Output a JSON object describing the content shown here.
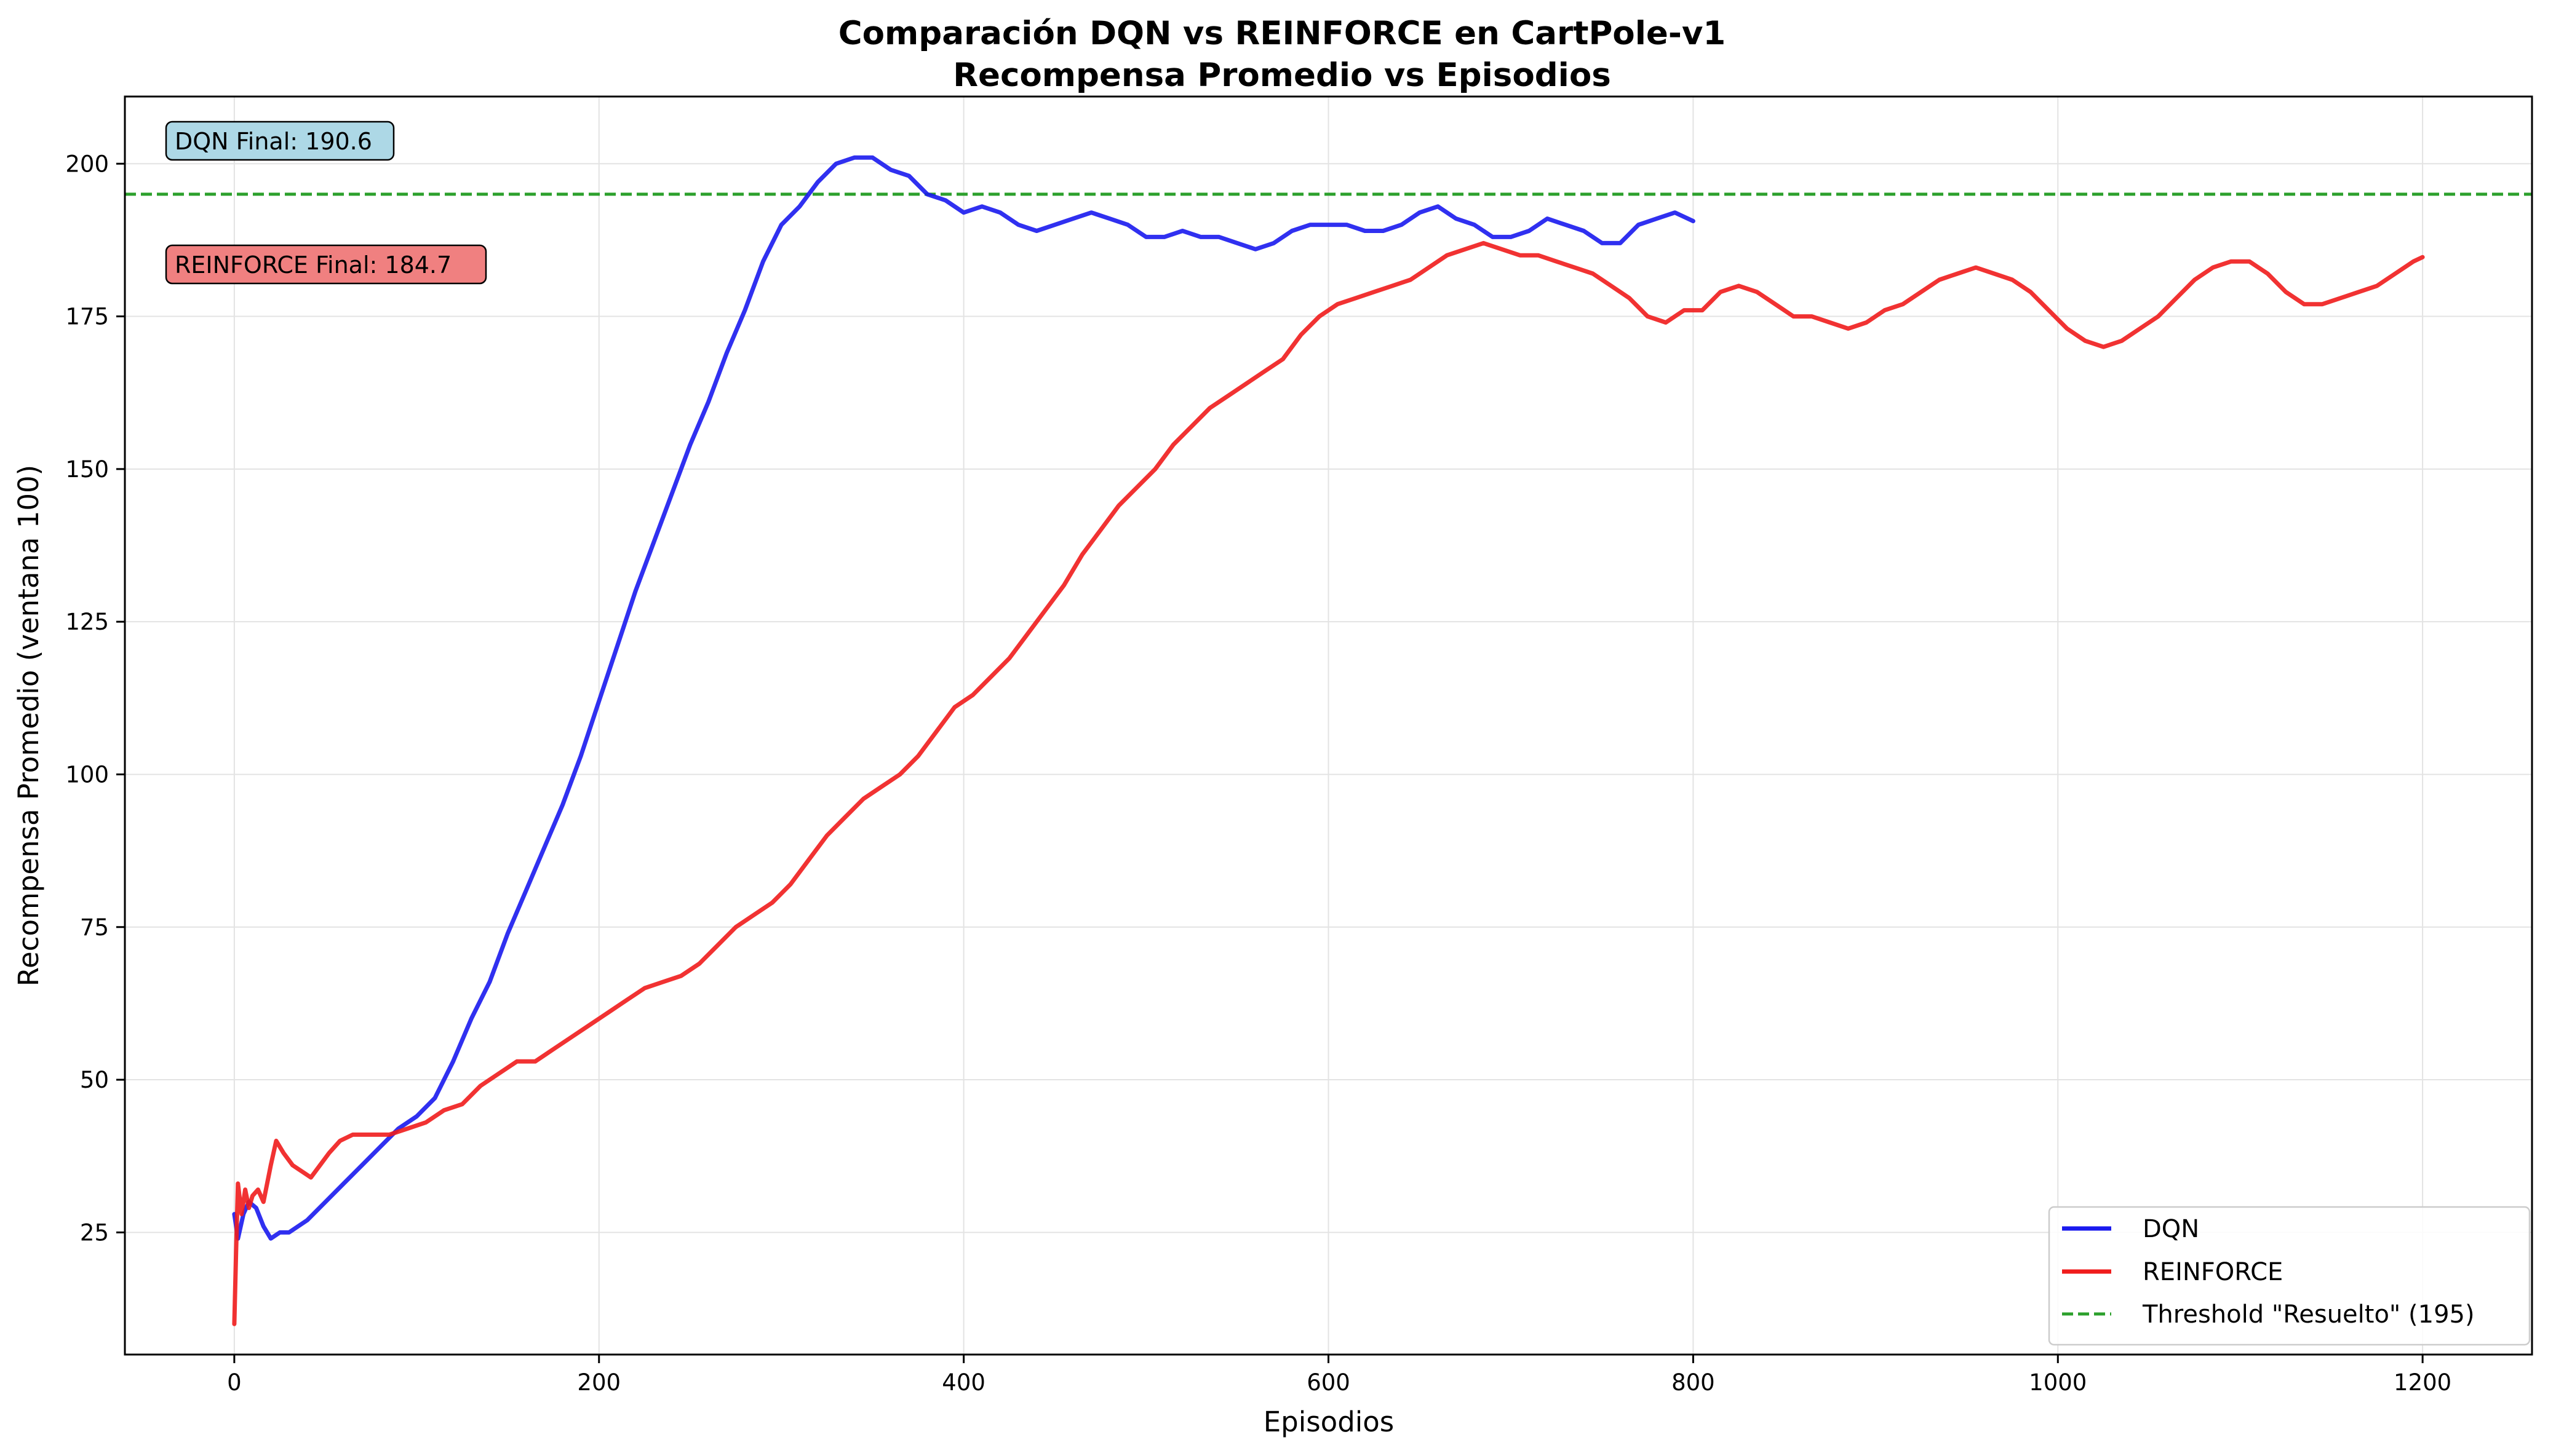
{
  "chart_data": {
    "type": "line",
    "title": "Comparación DQN vs REINFORCE en CartPole-v1",
    "subtitle": "Recompensa Promedio vs Episodios",
    "xlabel": "Episodios",
    "ylabel": "Recompensa Promedio (ventana 100)",
    "xlim": [
      -60,
      1260
    ],
    "ylim": [
      5,
      211
    ],
    "xticks": [
      0,
      200,
      400,
      600,
      800,
      1000,
      1200
    ],
    "yticks": [
      25,
      50,
      75,
      100,
      125,
      150,
      175,
      200
    ],
    "grid": true,
    "legend_position": "lower right",
    "series": [
      {
        "name": "DQN",
        "color": "#1a1aee",
        "points": [
          [
            0,
            28
          ],
          [
            2,
            24
          ],
          [
            5,
            28
          ],
          [
            8,
            30
          ],
          [
            12,
            29
          ],
          [
            16,
            26
          ],
          [
            20,
            24
          ],
          [
            25,
            25
          ],
          [
            30,
            25
          ],
          [
            40,
            27
          ],
          [
            50,
            30
          ],
          [
            60,
            33
          ],
          [
            70,
            36
          ],
          [
            80,
            39
          ],
          [
            90,
            42
          ],
          [
            100,
            44
          ],
          [
            110,
            47
          ],
          [
            120,
            53
          ],
          [
            130,
            60
          ],
          [
            140,
            66
          ],
          [
            150,
            74
          ],
          [
            160,
            81
          ],
          [
            170,
            88
          ],
          [
            180,
            95
          ],
          [
            190,
            103
          ],
          [
            200,
            112
          ],
          [
            210,
            121
          ],
          [
            220,
            130
          ],
          [
            230,
            138
          ],
          [
            240,
            146
          ],
          [
            250,
            154
          ],
          [
            260,
            161
          ],
          [
            270,
            169
          ],
          [
            280,
            176
          ],
          [
            290,
            184
          ],
          [
            300,
            190
          ],
          [
            310,
            193
          ],
          [
            320,
            197
          ],
          [
            330,
            200
          ],
          [
            340,
            201
          ],
          [
            350,
            201
          ],
          [
            360,
            199
          ],
          [
            370,
            198
          ],
          [
            380,
            195
          ],
          [
            390,
            194
          ],
          [
            400,
            192
          ],
          [
            410,
            193
          ],
          [
            420,
            192
          ],
          [
            430,
            190
          ],
          [
            440,
            189
          ],
          [
            450,
            190
          ],
          [
            460,
            191
          ],
          [
            470,
            192
          ],
          [
            480,
            191
          ],
          [
            490,
            190
          ],
          [
            500,
            188
          ],
          [
            510,
            188
          ],
          [
            520,
            189
          ],
          [
            530,
            188
          ],
          [
            540,
            188
          ],
          [
            550,
            187
          ],
          [
            560,
            186
          ],
          [
            570,
            187
          ],
          [
            580,
            189
          ],
          [
            590,
            190
          ],
          [
            600,
            190
          ],
          [
            610,
            190
          ],
          [
            620,
            189
          ],
          [
            630,
            189
          ],
          [
            640,
            190
          ],
          [
            650,
            192
          ],
          [
            660,
            193
          ],
          [
            670,
            191
          ],
          [
            680,
            190
          ],
          [
            690,
            188
          ],
          [
            700,
            188
          ],
          [
            710,
            189
          ],
          [
            720,
            191
          ],
          [
            730,
            190
          ],
          [
            740,
            189
          ],
          [
            750,
            187
          ],
          [
            760,
            187
          ],
          [
            770,
            190
          ],
          [
            780,
            191
          ],
          [
            790,
            192
          ],
          [
            800,
            190.6
          ]
        ]
      },
      {
        "name": "REINFORCE",
        "color": "#f01c1c",
        "points": [
          [
            0,
            10
          ],
          [
            1,
            22
          ],
          [
            2,
            33
          ],
          [
            4,
            28
          ],
          [
            6,
            32
          ],
          [
            8,
            29
          ],
          [
            10,
            31
          ],
          [
            13,
            32
          ],
          [
            16,
            30
          ],
          [
            20,
            36
          ],
          [
            23,
            40
          ],
          [
            27,
            38
          ],
          [
            32,
            36
          ],
          [
            37,
            35
          ],
          [
            42,
            34
          ],
          [
            47,
            36
          ],
          [
            52,
            38
          ],
          [
            58,
            40
          ],
          [
            65,
            41
          ],
          [
            75,
            41
          ],
          [
            85,
            41
          ],
          [
            95,
            42
          ],
          [
            105,
            43
          ],
          [
            115,
            45
          ],
          [
            125,
            46
          ],
          [
            135,
            49
          ],
          [
            145,
            51
          ],
          [
            155,
            53
          ],
          [
            165,
            53
          ],
          [
            175,
            55
          ],
          [
            185,
            57
          ],
          [
            195,
            59
          ],
          [
            205,
            61
          ],
          [
            215,
            63
          ],
          [
            225,
            65
          ],
          [
            235,
            66
          ],
          [
            245,
            67
          ],
          [
            255,
            69
          ],
          [
            265,
            72
          ],
          [
            275,
            75
          ],
          [
            285,
            77
          ],
          [
            295,
            79
          ],
          [
            305,
            82
          ],
          [
            315,
            86
          ],
          [
            325,
            90
          ],
          [
            335,
            93
          ],
          [
            345,
            96
          ],
          [
            355,
            98
          ],
          [
            365,
            100
          ],
          [
            375,
            103
          ],
          [
            385,
            107
          ],
          [
            395,
            111
          ],
          [
            405,
            113
          ],
          [
            415,
            116
          ],
          [
            425,
            119
          ],
          [
            435,
            123
          ],
          [
            445,
            127
          ],
          [
            455,
            131
          ],
          [
            465,
            136
          ],
          [
            475,
            140
          ],
          [
            485,
            144
          ],
          [
            495,
            147
          ],
          [
            505,
            150
          ],
          [
            515,
            154
          ],
          [
            525,
            157
          ],
          [
            535,
            160
          ],
          [
            545,
            162
          ],
          [
            555,
            164
          ],
          [
            565,
            166
          ],
          [
            575,
            168
          ],
          [
            585,
            172
          ],
          [
            595,
            175
          ],
          [
            605,
            177
          ],
          [
            615,
            178
          ],
          [
            625,
            179
          ],
          [
            635,
            180
          ],
          [
            645,
            181
          ],
          [
            655,
            183
          ],
          [
            665,
            185
          ],
          [
            675,
            186
          ],
          [
            685,
            187
          ],
          [
            695,
            186
          ],
          [
            705,
            185
          ],
          [
            715,
            185
          ],
          [
            725,
            184
          ],
          [
            735,
            183
          ],
          [
            745,
            182
          ],
          [
            755,
            180
          ],
          [
            765,
            178
          ],
          [
            775,
            175
          ],
          [
            785,
            174
          ],
          [
            795,
            176
          ],
          [
            805,
            176
          ],
          [
            815,
            179
          ],
          [
            825,
            180
          ],
          [
            835,
            179
          ],
          [
            845,
            177
          ],
          [
            855,
            175
          ],
          [
            865,
            175
          ],
          [
            875,
            174
          ],
          [
            885,
            173
          ],
          [
            895,
            174
          ],
          [
            905,
            176
          ],
          [
            915,
            177
          ],
          [
            925,
            179
          ],
          [
            935,
            181
          ],
          [
            945,
            182
          ],
          [
            955,
            183
          ],
          [
            965,
            182
          ],
          [
            975,
            181
          ],
          [
            985,
            179
          ],
          [
            995,
            176
          ],
          [
            1005,
            173
          ],
          [
            1015,
            171
          ],
          [
            1025,
            170
          ],
          [
            1035,
            171
          ],
          [
            1045,
            173
          ],
          [
            1055,
            175
          ],
          [
            1065,
            178
          ],
          [
            1075,
            181
          ],
          [
            1085,
            183
          ],
          [
            1095,
            184
          ],
          [
            1105,
            184
          ],
          [
            1115,
            182
          ],
          [
            1125,
            179
          ],
          [
            1135,
            177
          ],
          [
            1145,
            177
          ],
          [
            1155,
            178
          ],
          [
            1165,
            179
          ],
          [
            1175,
            180
          ],
          [
            1185,
            182
          ],
          [
            1195,
            184
          ],
          [
            1200,
            184.7
          ]
        ]
      }
    ],
    "threshold": {
      "label": "Threshold \"Resuelto\" (195)",
      "value": 195,
      "color": "#2ca02c",
      "style": "dashed"
    },
    "annotations": [
      {
        "text": "DQN Final: 190.6",
        "background": "#add8e6"
      },
      {
        "text": "REINFORCE Final: 184.7",
        "background": "#f08080"
      }
    ]
  }
}
